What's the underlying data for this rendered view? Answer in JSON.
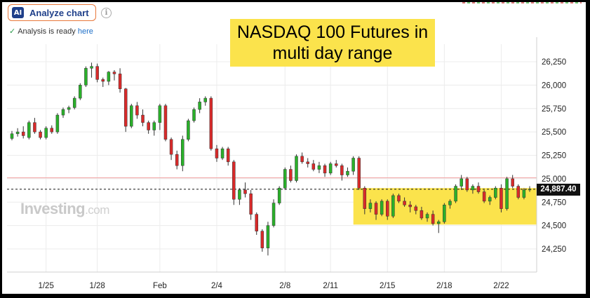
{
  "toolbar": {
    "analyze_badge": "AI",
    "analyze_label": "Analyze chart",
    "info_icon": "i",
    "status_text": "Analysis is ready",
    "status_link": "here"
  },
  "annotation": {
    "line1": "NASDAQ 100 Futures in",
    "line2": "multi day range",
    "box_color": "#fbe34c"
  },
  "branding": {
    "logo": "Investing",
    "logo_suffix": ".com"
  },
  "colors": {
    "up": "#2ab02a",
    "down": "#d92a2a",
    "range_highlight": "#fbe34c",
    "resistance_line": "#f2a9a9"
  },
  "chart_data": {
    "type": "candlestick",
    "title": "",
    "xlabel": "",
    "ylabel": "",
    "ylim": [
      24100,
      26350
    ],
    "y_ticks": [
      24250,
      24500,
      24750,
      25000,
      25250,
      25500,
      25750,
      26000,
      26250
    ],
    "y_tick_labels": [
      "24,250",
      "24,500",
      "24,750",
      "25,000",
      "25,250",
      "25,500",
      "25,750",
      "26,000",
      "26,250"
    ],
    "x_tick_labels": [
      "1/25",
      "1/28",
      "Feb",
      "2/4",
      "2/8",
      "2/11",
      "2/15",
      "2/18",
      "2/22"
    ],
    "x_tick_bar_index": [
      6,
      15,
      26,
      36,
      48,
      56,
      66,
      76,
      86
    ],
    "last_price": 24887.4,
    "last_price_label": "24,887.40",
    "resistance_level": 25010,
    "range_zone": {
      "from_bar": 61,
      "to_bar": 92,
      "low": 24510,
      "high": 24900
    },
    "grid": true,
    "legend": "none",
    "ohlc": [
      [
        25430,
        25510,
        25410,
        25480
      ],
      [
        25480,
        25540,
        25450,
        25500
      ],
      [
        25500,
        25560,
        25430,
        25460
      ],
      [
        25440,
        25620,
        25420,
        25600
      ],
      [
        25600,
        25650,
        25480,
        25500
      ],
      [
        25500,
        25520,
        25420,
        25440
      ],
      [
        25440,
        25560,
        25420,
        25540
      ],
      [
        25540,
        25570,
        25480,
        25500
      ],
      [
        25500,
        25700,
        25480,
        25680
      ],
      [
        25680,
        25760,
        25650,
        25740
      ],
      [
        25740,
        25780,
        25700,
        25760
      ],
      [
        25760,
        25880,
        25740,
        25860
      ],
      [
        25860,
        26020,
        25840,
        26000
      ],
      [
        26000,
        26200,
        25980,
        26180
      ],
      [
        26180,
        26240,
        26080,
        26200
      ],
      [
        26200,
        26230,
        26030,
        26060
      ],
      [
        26060,
        26080,
        25980,
        26040
      ],
      [
        26040,
        26150,
        26000,
        26140
      ],
      [
        26140,
        26160,
        26050,
        26120
      ],
      [
        26120,
        26180,
        25920,
        25960
      ],
      [
        25960,
        25970,
        25500,
        25560
      ],
      [
        25560,
        25800,
        25540,
        25780
      ],
      [
        25780,
        25820,
        25640,
        25680
      ],
      [
        25680,
        25740,
        25560,
        25600
      ],
      [
        25600,
        25620,
        25480,
        25520
      ],
      [
        25520,
        25620,
        25460,
        25600
      ],
      [
        25600,
        25800,
        25520,
        25780
      ],
      [
        25780,
        25800,
        25400,
        25420
      ],
      [
        25420,
        25440,
        25200,
        25260
      ],
      [
        25260,
        25300,
        25100,
        25140
      ],
      [
        25140,
        25460,
        25080,
        25420
      ],
      [
        25420,
        25640,
        25400,
        25620
      ],
      [
        25620,
        25760,
        25600,
        25740
      ],
      [
        25740,
        25860,
        25700,
        25820
      ],
      [
        25820,
        25880,
        25780,
        25860
      ],
      [
        25860,
        25880,
        25300,
        25320
      ],
      [
        25320,
        25360,
        25180,
        25220
      ],
      [
        25220,
        25340,
        25200,
        25320
      ],
      [
        25320,
        25340,
        25140,
        25180
      ],
      [
        25180,
        25200,
        24720,
        24780
      ],
      [
        24780,
        24900,
        24720,
        24880
      ],
      [
        24880,
        24960,
        24800,
        24840
      ],
      [
        24840,
        24880,
        24560,
        24620
      ],
      [
        24620,
        24640,
        24400,
        24440
      ],
      [
        24440,
        24460,
        24220,
        24260
      ],
      [
        24260,
        24540,
        24180,
        24500
      ],
      [
        24500,
        24780,
        24480,
        24740
      ],
      [
        24740,
        24920,
        24720,
        24900
      ],
      [
        24900,
        25120,
        24880,
        25100
      ],
      [
        25100,
        25140,
        24960,
        24980
      ],
      [
        24980,
        25260,
        24960,
        25240
      ],
      [
        25240,
        25280,
        25160,
        25180
      ],
      [
        25180,
        25220,
        25120,
        25160
      ],
      [
        25160,
        25200,
        25080,
        25100
      ],
      [
        25100,
        25180,
        25060,
        25140
      ],
      [
        25140,
        25160,
        25020,
        25060
      ],
      [
        25060,
        25180,
        25040,
        25160
      ],
      [
        25160,
        25200,
        25120,
        25140
      ],
      [
        25140,
        25160,
        24980,
        25040
      ],
      [
        25040,
        25120,
        25020,
        25080
      ],
      [
        25080,
        25240,
        25040,
        25220
      ],
      [
        25220,
        25240,
        24880,
        24900
      ],
      [
        24900,
        24920,
        24620,
        24680
      ],
      [
        24680,
        24780,
        24640,
        24740
      ],
      [
        24740,
        24760,
        24560,
        24620
      ],
      [
        24620,
        24780,
        24600,
        24760
      ],
      [
        24760,
        24780,
        24560,
        24600
      ],
      [
        24600,
        24840,
        24580,
        24820
      ],
      [
        24820,
        24840,
        24740,
        24760
      ],
      [
        24760,
        24800,
        24700,
        24720
      ],
      [
        24720,
        24760,
        24640,
        24700
      ],
      [
        24700,
        24720,
        24620,
        24660
      ],
      [
        24660,
        24700,
        24560,
        24580
      ],
      [
        24580,
        24640,
        24540,
        24620
      ],
      [
        24620,
        24660,
        24500,
        24520
      ],
      [
        24520,
        24560,
        24420,
        24540
      ],
      [
        24540,
        24740,
        24520,
        24720
      ],
      [
        24720,
        24780,
        24680,
        24760
      ],
      [
        24760,
        24940,
        24740,
        24920
      ],
      [
        24920,
        25040,
        24880,
        25000
      ],
      [
        25000,
        25020,
        24860,
        24880
      ],
      [
        24880,
        24940,
        24840,
        24920
      ],
      [
        24920,
        24960,
        24840,
        24860
      ],
      [
        24860,
        24880,
        24740,
        24760
      ],
      [
        24760,
        24820,
        24720,
        24800
      ],
      [
        24800,
        24920,
        24780,
        24900
      ],
      [
        24900,
        24940,
        24640,
        24680
      ],
      [
        24680,
        25020,
        24660,
        25000
      ],
      [
        25000,
        25040,
        24900,
        24920
      ],
      [
        24920,
        24940,
        24780,
        24800
      ],
      [
        24800,
        24900,
        24780,
        24880
      ],
      [
        24880,
        24920,
        24860,
        24887.4
      ]
    ]
  }
}
